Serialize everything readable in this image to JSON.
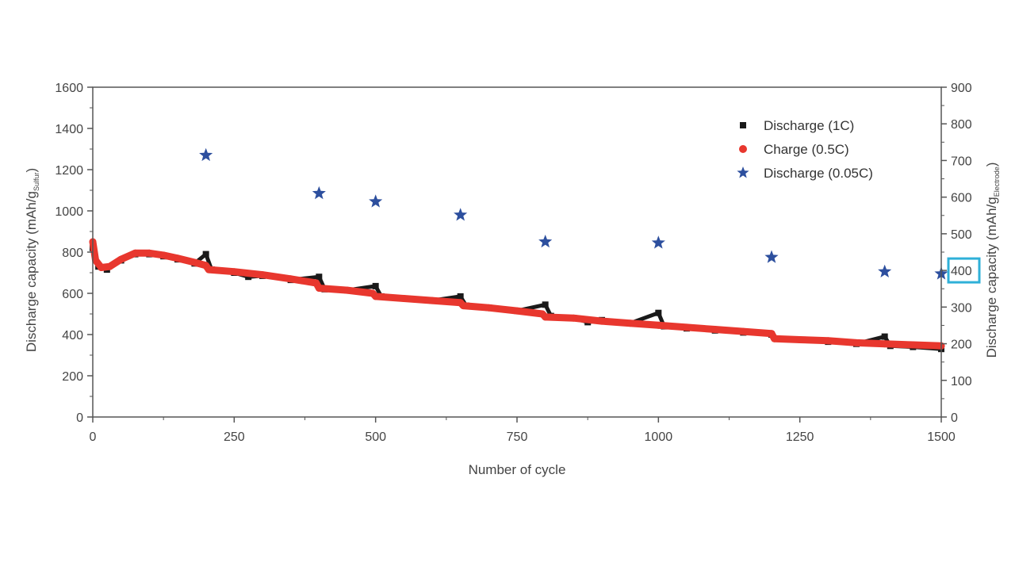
{
  "chart_data": {
    "type": "line",
    "xlabel": "Number of cycle",
    "ylabel_left": {
      "main": "Discharge capacity (mAh/g",
      "sub": "Sulfur",
      "close": ")"
    },
    "ylabel_right": {
      "main": "Discharge capacity (mAh/g",
      "sub": "Electrode",
      "close": ")"
    },
    "xlim": [
      0,
      1500
    ],
    "ylim_left": [
      0,
      1600
    ],
    "ylim_right": [
      0,
      900
    ],
    "x_ticks": [
      0,
      250,
      500,
      750,
      1000,
      1250,
      1500
    ],
    "y_ticks_left": [
      0,
      200,
      400,
      600,
      800,
      1000,
      1200,
      1400,
      1600
    ],
    "y_ticks_right": [
      0,
      100,
      200,
      300,
      400,
      500,
      600,
      700,
      800,
      900
    ],
    "highlighted_right_tick": 400,
    "legend_position": "top-right",
    "colors": {
      "discharge_1c": "#1a1a1a",
      "charge_05c": "#e8372e",
      "discharge_005c": "#2d4f9e",
      "highlight": "#2fb0d8",
      "axis": "#555555"
    },
    "series": [
      {
        "name": "Discharge (1C)",
        "marker": "square",
        "points": [
          [
            0,
            820
          ],
          [
            10,
            730
          ],
          [
            25,
            715
          ],
          [
            50,
            760
          ],
          [
            75,
            790
          ],
          [
            100,
            790
          ],
          [
            125,
            780
          ],
          [
            150,
            765
          ],
          [
            180,
            745
          ],
          [
            200,
            790
          ],
          [
            210,
            715
          ],
          [
            250,
            700
          ],
          [
            275,
            680
          ],
          [
            300,
            685
          ],
          [
            350,
            665
          ],
          [
            400,
            680
          ],
          [
            410,
            620
          ],
          [
            450,
            615
          ],
          [
            500,
            635
          ],
          [
            510,
            585
          ],
          [
            550,
            575
          ],
          [
            600,
            565
          ],
          [
            650,
            585
          ],
          [
            660,
            540
          ],
          [
            700,
            530
          ],
          [
            750,
            515
          ],
          [
            800,
            545
          ],
          [
            810,
            490
          ],
          [
            850,
            480
          ],
          [
            875,
            460
          ],
          [
            900,
            470
          ],
          [
            950,
            455
          ],
          [
            1000,
            505
          ],
          [
            1010,
            440
          ],
          [
            1050,
            430
          ],
          [
            1100,
            420
          ],
          [
            1150,
            410
          ],
          [
            1200,
            400
          ],
          [
            1210,
            380
          ],
          [
            1250,
            375
          ],
          [
            1300,
            365
          ],
          [
            1350,
            355
          ],
          [
            1400,
            390
          ],
          [
            1410,
            345
          ],
          [
            1450,
            340
          ],
          [
            1500,
            330
          ]
        ]
      },
      {
        "name": "Charge (0.5C)",
        "marker": "circle",
        "points": [
          [
            0,
            850
          ],
          [
            5,
            760
          ],
          [
            15,
            725
          ],
          [
            30,
            730
          ],
          [
            50,
            765
          ],
          [
            75,
            795
          ],
          [
            100,
            795
          ],
          [
            125,
            785
          ],
          [
            150,
            770
          ],
          [
            180,
            750
          ],
          [
            200,
            735
          ],
          [
            205,
            715
          ],
          [
            250,
            705
          ],
          [
            300,
            690
          ],
          [
            350,
            670
          ],
          [
            395,
            650
          ],
          [
            400,
            625
          ],
          [
            450,
            615
          ],
          [
            495,
            600
          ],
          [
            500,
            585
          ],
          [
            550,
            575
          ],
          [
            600,
            565
          ],
          [
            650,
            555
          ],
          [
            655,
            540
          ],
          [
            700,
            530
          ],
          [
            750,
            515
          ],
          [
            795,
            500
          ],
          [
            800,
            485
          ],
          [
            850,
            480
          ],
          [
            900,
            465
          ],
          [
            950,
            455
          ],
          [
            1000,
            445
          ],
          [
            1050,
            435
          ],
          [
            1100,
            425
          ],
          [
            1150,
            415
          ],
          [
            1200,
            405
          ],
          [
            1205,
            380
          ],
          [
            1250,
            375
          ],
          [
            1300,
            370
          ],
          [
            1350,
            360
          ],
          [
            1400,
            355
          ],
          [
            1450,
            350
          ],
          [
            1500,
            345
          ]
        ]
      },
      {
        "name": "Discharge (0.05C)",
        "marker": "star",
        "points": [
          [
            200,
            1270
          ],
          [
            400,
            1085
          ],
          [
            500,
            1045
          ],
          [
            650,
            980
          ],
          [
            800,
            850
          ],
          [
            1000,
            845
          ],
          [
            1200,
            775
          ],
          [
            1400,
            705
          ],
          [
            1500,
            695
          ]
        ]
      }
    ]
  }
}
